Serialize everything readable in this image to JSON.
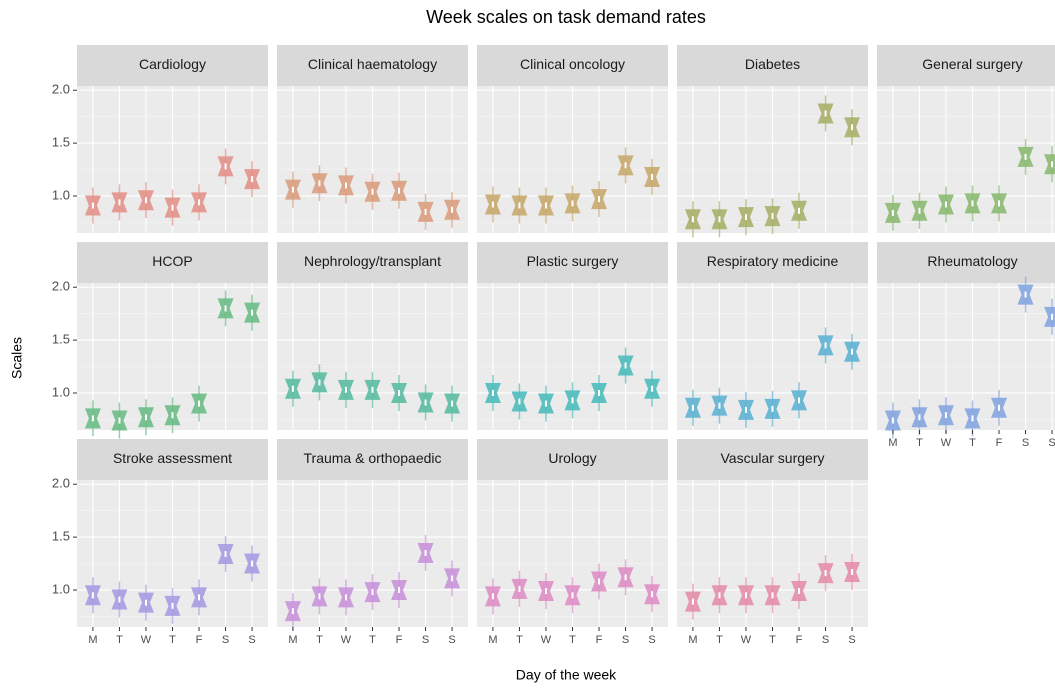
{
  "chart_data": {
    "type": "interval",
    "title": "Week scales on task demand rates",
    "x_label": "Day of the week",
    "y_label": "Scales",
    "categories": [
      "M",
      "T",
      "W",
      "T",
      "F",
      "S",
      "S"
    ],
    "ylim": [
      0.65,
      2.04
    ],
    "yticks": [
      {
        "value": 1.0,
        "label": "1.0"
      },
      {
        "value": 1.5,
        "label": "1.5"
      },
      {
        "value": 2.0,
        "label": "2.0"
      }
    ],
    "grid": true,
    "series": [
      {
        "name": "Cardiology",
        "color": "#e3928a",
        "values": [
          0.91,
          0.94,
          0.96,
          0.89,
          0.94,
          1.28,
          1.16
        ]
      },
      {
        "name": "Clinical haematology",
        "color": "#d99e80",
        "values": [
          1.06,
          1.12,
          1.1,
          1.04,
          1.05,
          0.85,
          0.87
        ]
      },
      {
        "name": "Clinical oncology",
        "color": "#c8aa6e",
        "values": [
          0.92,
          0.91,
          0.91,
          0.93,
          0.97,
          1.29,
          1.18
        ]
      },
      {
        "name": "Diabetes",
        "color": "#a8b06a",
        "values": [
          0.78,
          0.78,
          0.8,
          0.81,
          0.86,
          1.78,
          1.65
        ]
      },
      {
        "name": "General surgery",
        "color": "#8cba72",
        "values": [
          0.84,
          0.86,
          0.92,
          0.93,
          0.93,
          1.37,
          1.3
        ]
      },
      {
        "name": "HCOP",
        "color": "#6cbd86",
        "values": [
          0.76,
          0.74,
          0.77,
          0.79,
          0.9,
          1.8,
          1.76
        ]
      },
      {
        "name": "Nephrology/transplant",
        "color": "#5cbda2",
        "values": [
          1.04,
          1.1,
          1.03,
          1.03,
          1.0,
          0.91,
          0.9
        ]
      },
      {
        "name": "Plastic surgery",
        "color": "#4fbcbc",
        "values": [
          1.0,
          0.92,
          0.9,
          0.93,
          1.0,
          1.26,
          1.04
        ]
      },
      {
        "name": "Respiratory medicine",
        "color": "#5fb2d3",
        "values": [
          0.86,
          0.88,
          0.84,
          0.85,
          0.93,
          1.45,
          1.39
        ]
      },
      {
        "name": "Rheumatology",
        "color": "#86a6e0",
        "values": [
          0.74,
          0.77,
          0.79,
          0.76,
          0.86,
          1.93,
          1.72
        ]
      },
      {
        "name": "Stroke assessment",
        "color": "#a99ce2",
        "values": [
          0.95,
          0.91,
          0.88,
          0.85,
          0.93,
          1.34,
          1.25
        ]
      },
      {
        "name": "Trauma & orthopaedic",
        "color": "#c993da",
        "values": [
          0.8,
          0.94,
          0.93,
          0.98,
          1.0,
          1.35,
          1.11
        ]
      },
      {
        "name": "Urology",
        "color": "#de8fc5",
        "values": [
          0.94,
          1.01,
          0.99,
          0.95,
          1.08,
          1.12,
          0.96
        ]
      },
      {
        "name": "Vascular surgery",
        "color": "#e48fa9",
        "values": [
          0.89,
          0.95,
          0.95,
          0.95,
          0.99,
          1.16,
          1.17
        ]
      }
    ]
  }
}
